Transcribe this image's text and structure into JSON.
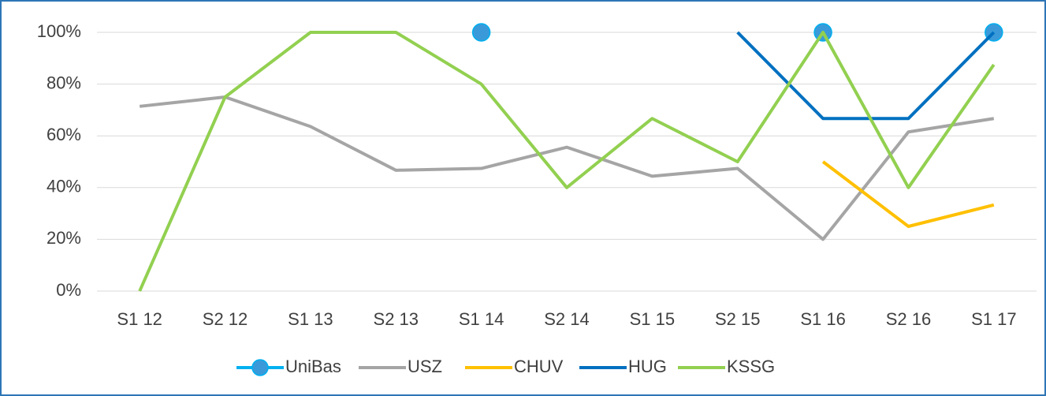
{
  "chart_data": {
    "type": "line",
    "categories": [
      "S1 12",
      "S2 12",
      "S1 13",
      "S2 13",
      "S1 14",
      "S2 14",
      "S1 15",
      "S2 15",
      "S1 16",
      "S2 16",
      "S1 17"
    ],
    "series": [
      {
        "name": "UniBas",
        "color": "#00b0f0",
        "marker": "#3a9ad9",
        "values": [
          null,
          null,
          null,
          null,
          100,
          null,
          null,
          null,
          100,
          null,
          100
        ]
      },
      {
        "name": "USZ",
        "color": "#a5a5a5",
        "values": [
          71.4,
          75,
          63.6,
          46.7,
          47.4,
          55.6,
          44.4,
          47.4,
          20,
          61.5,
          66.7
        ]
      },
      {
        "name": "CHUV",
        "color": "#ffc000",
        "values": [
          null,
          null,
          null,
          null,
          null,
          null,
          null,
          null,
          50,
          25,
          33.3
        ]
      },
      {
        "name": "HUG",
        "color": "#0070c0",
        "values": [
          null,
          null,
          null,
          null,
          null,
          null,
          null,
          100,
          66.7,
          66.7,
          100
        ]
      },
      {
        "name": "KSSG",
        "color": "#92d050",
        "values": [
          0,
          75,
          100,
          100,
          80,
          40,
          66.7,
          50,
          100,
          40,
          87.5
        ]
      }
    ],
    "ylim": [
      0,
      100
    ],
    "yticks": [
      {
        "value": 0,
        "label": "0%"
      },
      {
        "value": 20,
        "label": "20%"
      },
      {
        "value": 40,
        "label": "40%"
      },
      {
        "value": 60,
        "label": "60%"
      },
      {
        "value": 80,
        "label": "80%"
      },
      {
        "value": 100,
        "label": "100%"
      }
    ],
    "grid": true,
    "legend": "bottom"
  }
}
